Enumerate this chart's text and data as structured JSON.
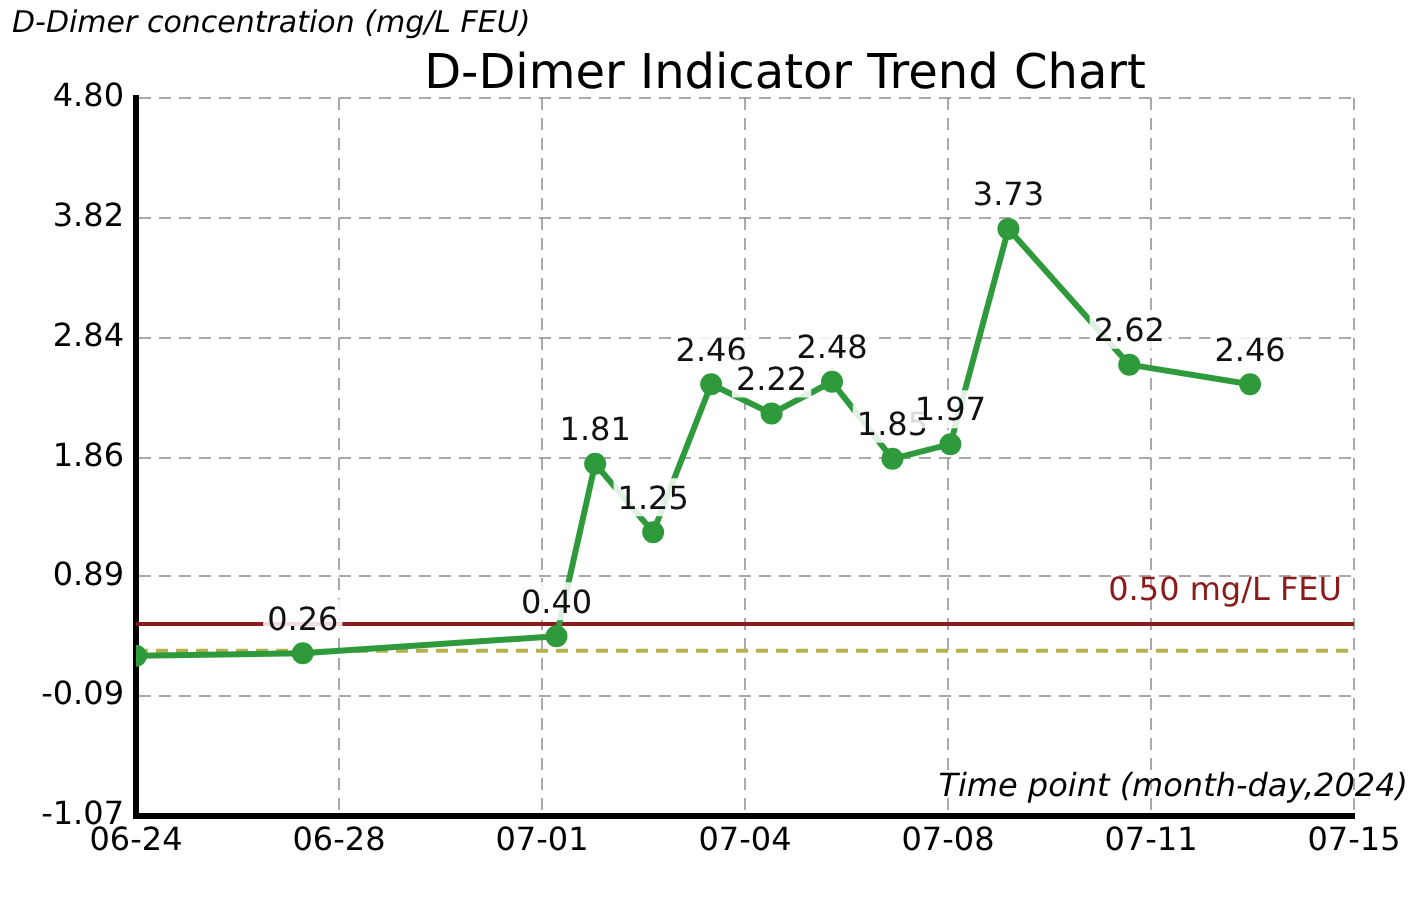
{
  "chart_data": {
    "type": "line",
    "title": "D-Dimer Indicator Trend Chart",
    "xlabel": "Time point (month-day,2024)",
    "ylabel": "D-Dimer concentration (mg/L FEU)",
    "x": [
      "2024-06-24T00:00",
      "2024-06-26T21:00",
      "2024-07-01T06:00",
      "2024-07-01T22:00",
      "2024-07-02T22:00",
      "2024-07-03T22:00",
      "2024-07-04T23:00",
      "2024-07-06T00:00",
      "2024-07-07T01:00",
      "2024-07-08T01:00",
      "2024-07-09T01:00",
      "2024-07-11T03:00",
      "2024-07-13T05:00"
    ],
    "series": [
      {
        "color": "#2e9a3c",
        "values": [
          0.24,
          0.26,
          0.4,
          1.81,
          1.25,
          2.46,
          2.22,
          2.48,
          1.85,
          1.97,
          3.73,
          2.62,
          2.46
        ],
        "value_labels": [
          null,
          "0.26",
          "0.40",
          "1.81",
          "1.25",
          "2.46",
          "2.22",
          "2.48",
          "1.85",
          "1.97",
          "3.73",
          "2.62",
          "2.46"
        ]
      }
    ],
    "xlim": [
      "2024-06-24",
      "2024-07-15"
    ],
    "xticks": [
      {
        "value": "2024-06-24",
        "label": "06-24"
      },
      {
        "value": "2024-06-27T12:00",
        "label": "06-28"
      },
      {
        "value": "2024-07-01",
        "label": "07-01"
      },
      {
        "value": "2024-07-04T12:00",
        "label": "07-04"
      },
      {
        "value": "2024-07-08",
        "label": "07-08"
      },
      {
        "value": "2024-07-11T12:00",
        "label": "07-11"
      },
      {
        "value": "2024-07-15",
        "label": "07-15"
      }
    ],
    "ylim": [
      -1.07,
      4.8
    ],
    "yticks": [
      -1.07,
      -0.09,
      0.89,
      1.86,
      2.84,
      3.82,
      {
        "value": 4.8,
        "label": "4.80"
      }
    ],
    "ref_lines": [
      {
        "axis": "y",
        "value": 0.5,
        "label": "0.50 mg/L FEU",
        "color": "#8b1a1a",
        "line_style": "solid"
      },
      {
        "axis": "y",
        "value": 0.28,
        "color": "#b8b050",
        "line_style": "dashed"
      }
    ],
    "grid": true,
    "legend": false,
    "marker": "circle",
    "line_style": "solid"
  }
}
